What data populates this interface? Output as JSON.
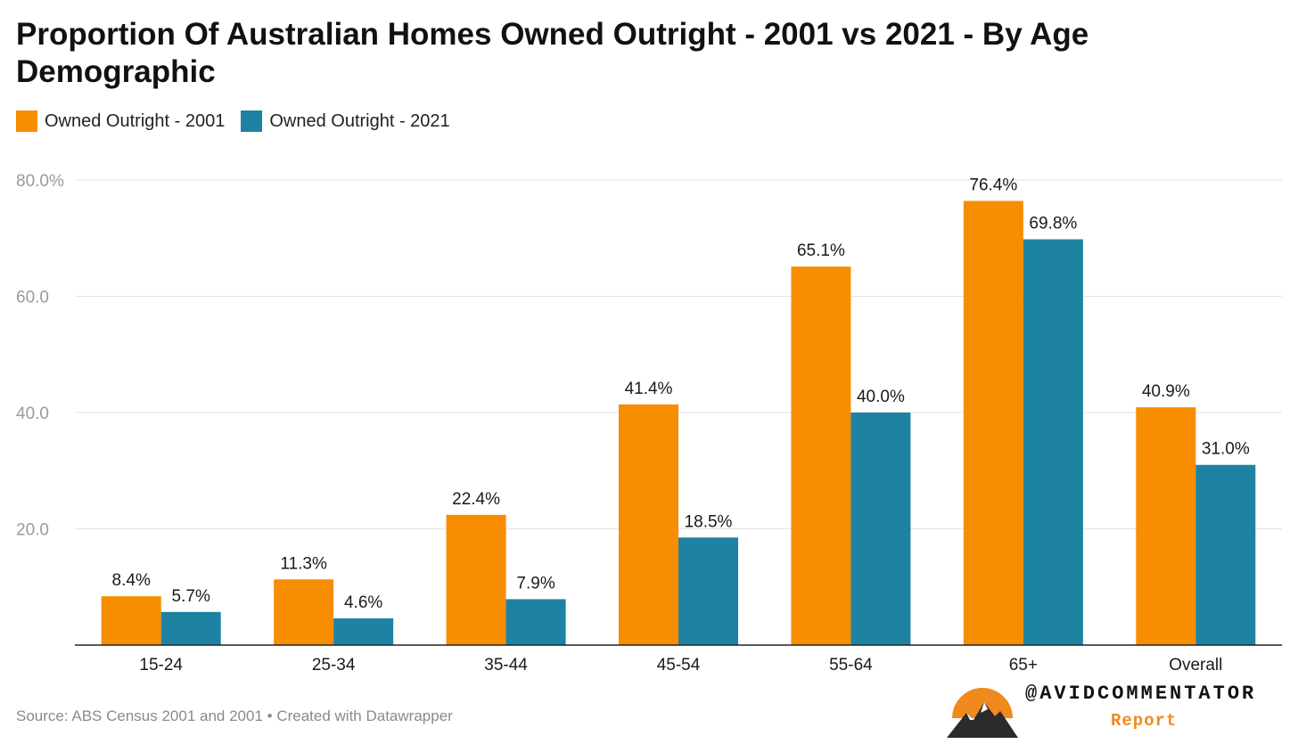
{
  "title": "Proportion Of Australian Homes Owned Outright - 2001 vs 2021 - By Age Demographic",
  "legend": [
    {
      "label": "Owned Outright - 2001",
      "color": "#f78d00"
    },
    {
      "label": "Owned Outright - 2021",
      "color": "#1e82a3"
    }
  ],
  "source": "Source: ABS Census 2001 and 2001 • Created with Datawrapper",
  "brand": {
    "handle": "@AVIDCOMMENTATOR",
    "sub": "Report",
    "logo_icon": "sunset-mountain-logo"
  },
  "chart_data": {
    "type": "bar",
    "title": "Proportion Of Australian Homes Owned Outright - 2001 vs 2021 - By Age Demographic",
    "categories": [
      "15-24",
      "25-34",
      "35-44",
      "45-54",
      "55-64",
      "65+",
      "Overall"
    ],
    "series": [
      {
        "name": "Owned Outright - 2001",
        "color": "#f78d00",
        "values": [
          8.4,
          11.3,
          22.4,
          41.4,
          65.1,
          76.4,
          40.9
        ],
        "labels": [
          "8.4%",
          "11.3%",
          "22.4%",
          "41.4%",
          "65.1%",
          "76.4%",
          "40.9%"
        ]
      },
      {
        "name": "Owned Outright - 2021",
        "color": "#1e82a3",
        "values": [
          5.7,
          4.6,
          7.9,
          18.5,
          40.0,
          69.8,
          31.0
        ],
        "labels": [
          "5.7%",
          "4.6%",
          "7.9%",
          "18.5%",
          "40.0%",
          "69.8%",
          "31.0%"
        ]
      }
    ],
    "yticks": [
      20,
      40,
      60,
      80
    ],
    "ytick_labels": [
      "20.0",
      "40.0",
      "60.0",
      "80.0%"
    ],
    "ylim": [
      0,
      80
    ],
    "xlabel": "",
    "ylabel": "",
    "grid": true,
    "legend_position": "top-left"
  }
}
